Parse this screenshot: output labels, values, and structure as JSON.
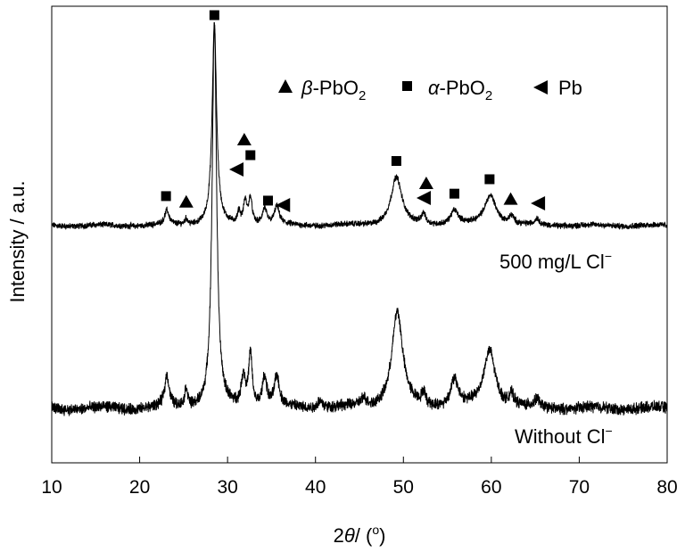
{
  "chart_data": {
    "type": "line",
    "xlabel_parts": {
      "pre": "2",
      "theta": "θ",
      "post": "/ (",
      "deg": "o",
      "close": ")"
    },
    "ylabel": "Intensity / a.u.",
    "xlim": [
      10,
      80
    ],
    "xticks": [
      10,
      20,
      30,
      40,
      50,
      60,
      70,
      80
    ],
    "xtick_labels": [
      "10",
      "20",
      "30",
      "40",
      "50",
      "60",
      "70",
      "80"
    ],
    "grid": false,
    "legend": {
      "placement": "top-right",
      "entries": [
        {
          "marker": "triangle-up",
          "greek": "β",
          "label_main": "-PbO",
          "sub": "2"
        },
        {
          "marker": "square",
          "greek": "α",
          "label_main": "-PbO",
          "sub": "2"
        },
        {
          "marker": "triangle-left",
          "greek": "",
          "label_main": "Pb",
          "sub": ""
        }
      ]
    },
    "series": [
      {
        "name": "500 mg/L Cl",
        "name_sup": "−",
        "peaks": [
          {
            "x": 23.1,
            "h": 0.07,
            "w": 0.45
          },
          {
            "x": 25.3,
            "h": 0.03,
            "w": 0.3
          },
          {
            "x": 28.5,
            "h": 1.0,
            "w": 0.45
          },
          {
            "x": 31.3,
            "h": 0.06,
            "w": 0.25
          },
          {
            "x": 32.0,
            "h": 0.11,
            "w": 0.35
          },
          {
            "x": 32.6,
            "h": 0.13,
            "w": 0.35
          },
          {
            "x": 34.2,
            "h": 0.08,
            "w": 0.45
          },
          {
            "x": 35.6,
            "h": 0.09,
            "w": 0.5
          },
          {
            "x": 49.2,
            "h": 0.24,
            "w": 1.1
          },
          {
            "x": 52.3,
            "h": 0.05,
            "w": 0.4
          },
          {
            "x": 55.8,
            "h": 0.07,
            "w": 0.8
          },
          {
            "x": 59.9,
            "h": 0.15,
            "w": 1.2
          },
          {
            "x": 62.3,
            "h": 0.04,
            "w": 0.5
          },
          {
            "x": 65.2,
            "h": 0.03,
            "w": 0.4
          }
        ],
        "phase_markers": [
          {
            "x": 23.0,
            "phase": "alpha-PbO2"
          },
          {
            "x": 25.3,
            "phase": "beta-PbO2"
          },
          {
            "x": 28.5,
            "phase": "alpha-PbO2"
          },
          {
            "x": 31.0,
            "phase": "Pb"
          },
          {
            "x": 31.9,
            "phase": "beta-PbO2"
          },
          {
            "x": 32.6,
            "phase": "alpha-PbO2"
          },
          {
            "x": 34.6,
            "phase": "alpha-PbO2"
          },
          {
            "x": 36.3,
            "phase": "Pb"
          },
          {
            "x": 49.2,
            "phase": "alpha-PbO2"
          },
          {
            "x": 52.3,
            "phase": "Pb"
          },
          {
            "x": 52.6,
            "phase": "beta-PbO2"
          },
          {
            "x": 55.8,
            "phase": "alpha-PbO2"
          },
          {
            "x": 59.8,
            "phase": "alpha-PbO2"
          },
          {
            "x": 62.2,
            "phase": "beta-PbO2"
          },
          {
            "x": 65.3,
            "phase": "Pb"
          }
        ]
      },
      {
        "name": "Without Cl",
        "name_sup": "−",
        "peaks": [
          {
            "x": 23.1,
            "h": 0.08,
            "w": 0.45
          },
          {
            "x": 25.3,
            "h": 0.05,
            "w": 0.3
          },
          {
            "x": 28.5,
            "h": 1.0,
            "w": 0.45
          },
          {
            "x": 31.8,
            "h": 0.08,
            "w": 0.4
          },
          {
            "x": 32.6,
            "h": 0.14,
            "w": 0.35
          },
          {
            "x": 34.2,
            "h": 0.08,
            "w": 0.45
          },
          {
            "x": 35.6,
            "h": 0.08,
            "w": 0.5
          },
          {
            "x": 40.5,
            "h": 0.02,
            "w": 0.6
          },
          {
            "x": 45.5,
            "h": 0.02,
            "w": 0.6
          },
          {
            "x": 49.3,
            "h": 0.25,
            "w": 1.1
          },
          {
            "x": 52.3,
            "h": 0.03,
            "w": 0.4
          },
          {
            "x": 55.8,
            "h": 0.07,
            "w": 0.8
          },
          {
            "x": 59.8,
            "h": 0.15,
            "w": 1.2
          },
          {
            "x": 62.3,
            "h": 0.03,
            "w": 0.5
          },
          {
            "x": 65.2,
            "h": 0.02,
            "w": 0.4
          }
        ]
      }
    ]
  }
}
